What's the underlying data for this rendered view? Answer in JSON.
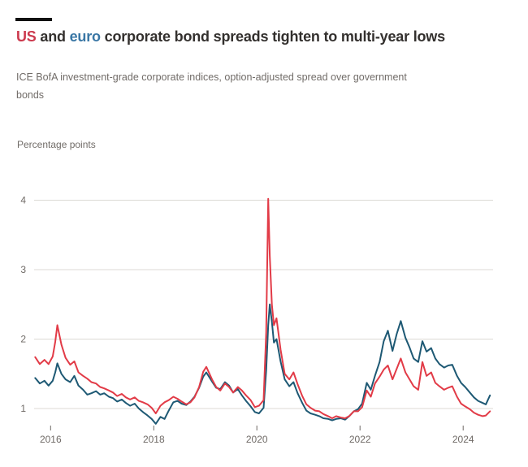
{
  "header": {
    "title": [
      {
        "text": "US",
        "color": "#cc3a4e"
      },
      {
        "text": " and ",
        "color": "#33302e"
      },
      {
        "text": "euro",
        "color": "#3a77a5"
      },
      {
        "text": " corporate bond spreads tighten to multi-year lows",
        "color": "#33302e"
      }
    ],
    "subtitle": "ICE BofA investment-grade corporate indices, option-adjusted spread over government bonds"
  },
  "chart_data": {
    "type": "line",
    "title": "US and euro corporate bond spreads tighten to multi-year lows",
    "subtitle": "ICE BofA investment-grade corporate indices, option-adjusted spread over government bonds",
    "ylabel": "Percentage points",
    "xlabel": "",
    "x_ticks": [
      2016,
      2018,
      2020,
      2022,
      2024
    ],
    "y_ticks": [
      1,
      2,
      3,
      4
    ],
    "xlim": [
      2015.68,
      2024.58
    ],
    "ylim": [
      0.7,
      4.1
    ],
    "grid": "horizontal",
    "legend_position": "title-inline",
    "colors": {
      "grid": "#dcdad5",
      "axis_text": "#6f6a66",
      "us_line": "#e23b47",
      "euro_line": "#1e5974"
    },
    "x": [
      2015.7,
      2015.79,
      2015.88,
      2015.96,
      2016.04,
      2016.09,
      2016.13,
      2016.21,
      2016.29,
      2016.38,
      2016.46,
      2016.54,
      2016.63,
      2016.71,
      2016.79,
      2016.88,
      2016.96,
      2017.04,
      2017.13,
      2017.21,
      2017.29,
      2017.38,
      2017.46,
      2017.54,
      2017.63,
      2017.71,
      2017.79,
      2017.88,
      2017.96,
      2018.04,
      2018.13,
      2018.21,
      2018.29,
      2018.38,
      2018.46,
      2018.54,
      2018.63,
      2018.71,
      2018.79,
      2018.88,
      2018.96,
      2019.02,
      2019.13,
      2019.21,
      2019.29,
      2019.38,
      2019.46,
      2019.54,
      2019.63,
      2019.71,
      2019.79,
      2019.88,
      2019.96,
      2020.04,
      2020.13,
      2020.18,
      2020.22,
      2020.25,
      2020.29,
      2020.33,
      2020.38,
      2020.46,
      2020.54,
      2020.63,
      2020.71,
      2020.79,
      2020.88,
      2020.96,
      2021.04,
      2021.13,
      2021.21,
      2021.29,
      2021.38,
      2021.46,
      2021.54,
      2021.63,
      2021.71,
      2021.79,
      2021.88,
      2021.96,
      2022.04,
      2022.13,
      2022.21,
      2022.29,
      2022.38,
      2022.46,
      2022.54,
      2022.63,
      2022.71,
      2022.79,
      2022.88,
      2022.96,
      2023.04,
      2023.13,
      2023.21,
      2023.29,
      2023.38,
      2023.46,
      2023.54,
      2023.63,
      2023.71,
      2023.79,
      2023.88,
      2023.96,
      2024.04,
      2024.13,
      2024.21,
      2024.29,
      2024.38,
      2024.44,
      2024.52
    ],
    "series": [
      {
        "name": "euro",
        "color": "#1e5974",
        "values": [
          1.44,
          1.36,
          1.4,
          1.33,
          1.4,
          1.52,
          1.65,
          1.5,
          1.42,
          1.38,
          1.47,
          1.33,
          1.27,
          1.2,
          1.22,
          1.25,
          1.2,
          1.22,
          1.17,
          1.15,
          1.1,
          1.13,
          1.08,
          1.04,
          1.07,
          1.0,
          0.95,
          0.9,
          0.85,
          0.78,
          0.88,
          0.85,
          0.97,
          1.09,
          1.11,
          1.07,
          1.05,
          1.1,
          1.17,
          1.3,
          1.46,
          1.52,
          1.39,
          1.3,
          1.28,
          1.38,
          1.33,
          1.23,
          1.28,
          1.19,
          1.11,
          1.03,
          0.95,
          0.93,
          1.01,
          1.55,
          2.2,
          2.5,
          2.25,
          1.95,
          2.0,
          1.68,
          1.42,
          1.32,
          1.38,
          1.22,
          1.08,
          0.97,
          0.93,
          0.91,
          0.89,
          0.86,
          0.85,
          0.83,
          0.85,
          0.86,
          0.84,
          0.89,
          0.96,
          0.99,
          1.07,
          1.37,
          1.27,
          1.47,
          1.67,
          1.97,
          2.12,
          1.83,
          2.07,
          2.26,
          2.02,
          1.88,
          1.72,
          1.67,
          1.97,
          1.82,
          1.87,
          1.72,
          1.64,
          1.59,
          1.62,
          1.63,
          1.47,
          1.37,
          1.31,
          1.23,
          1.16,
          1.11,
          1.08,
          1.06,
          1.19
        ]
      },
      {
        "name": "US",
        "color": "#e23b47",
        "values": [
          1.74,
          1.64,
          1.7,
          1.64,
          1.75,
          1.96,
          2.2,
          1.92,
          1.73,
          1.63,
          1.68,
          1.52,
          1.47,
          1.43,
          1.38,
          1.36,
          1.31,
          1.29,
          1.26,
          1.23,
          1.18,
          1.21,
          1.16,
          1.13,
          1.16,
          1.11,
          1.09,
          1.06,
          1.01,
          0.93,
          1.04,
          1.09,
          1.12,
          1.17,
          1.14,
          1.1,
          1.06,
          1.09,
          1.16,
          1.31,
          1.53,
          1.6,
          1.42,
          1.31,
          1.26,
          1.36,
          1.31,
          1.23,
          1.31,
          1.26,
          1.19,
          1.12,
          1.02,
          1.04,
          1.12,
          2.1,
          4.02,
          3.2,
          2.5,
          2.2,
          2.3,
          1.85,
          1.5,
          1.42,
          1.52,
          1.35,
          1.18,
          1.06,
          1.01,
          0.97,
          0.96,
          0.92,
          0.89,
          0.86,
          0.89,
          0.87,
          0.86,
          0.89,
          0.96,
          0.96,
          1.02,
          1.26,
          1.17,
          1.36,
          1.46,
          1.56,
          1.62,
          1.42,
          1.57,
          1.72,
          1.52,
          1.42,
          1.32,
          1.27,
          1.67,
          1.47,
          1.52,
          1.37,
          1.32,
          1.27,
          1.3,
          1.32,
          1.17,
          1.07,
          1.03,
          0.99,
          0.94,
          0.91,
          0.89,
          0.9,
          0.96
        ]
      }
    ]
  }
}
